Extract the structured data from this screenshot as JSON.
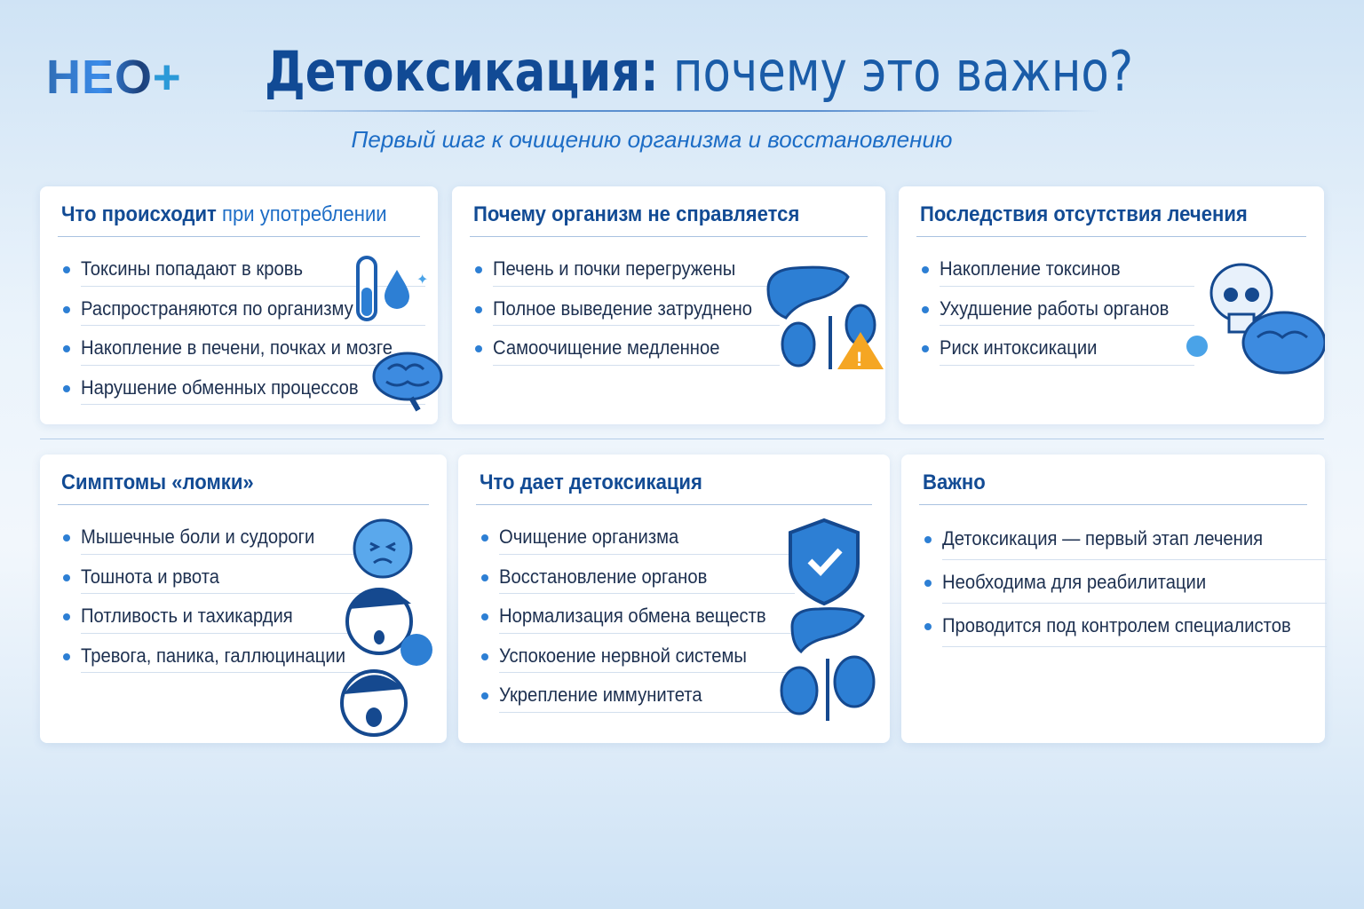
{
  "logo": {
    "text": "НЕО",
    "plus": "+"
  },
  "header": {
    "title_bold": "Детоксикация:",
    "title_rest": " почему это важно?",
    "subtitle": "Первый шаг к очищению организма и восстановлению"
  },
  "cards": [
    {
      "title_bold": "Что происходит",
      "title_rest": " при употреблении",
      "items": [
        "Токсины попадают в кровь",
        "Распространяются по организму",
        "Накопление в печени, почках и мозге",
        "Нарушение обменных процессов"
      ],
      "icons": [
        "test-tube-icon",
        "drop-icon",
        "brain-icon"
      ]
    },
    {
      "title_bold": "Почему организм не справляется",
      "title_rest": "",
      "items": [
        "Печень и почки перегружены",
        "Полное выведение затруднено",
        "Самоочищение медленное"
      ],
      "icons": [
        "liver-icon",
        "kidneys-icon",
        "warning-icon"
      ]
    },
    {
      "title_bold": "Последствия отсутствия лечения",
      "title_rest": "",
      "items": [
        "Накопление токсинов",
        "Ухудшение работы органов",
        "Риск интоксикации"
      ],
      "icons": [
        "skull-icon",
        "brain-icon"
      ]
    },
    {
      "title_bold": "Симптомы «ломки»",
      "title_rest": "",
      "items": [
        "Мышечные боли и судороги",
        "Тошнота и рвота",
        "Потливость и тахикардия",
        "Тревога, паника, галлюцинации"
      ],
      "icons": [
        "sick-face-icon",
        "sweating-face-icon",
        "scared-face-icon"
      ]
    },
    {
      "title_bold": "Что дает детоксикация",
      "title_rest": "",
      "items": [
        "Очищение организма",
        "Восстановление органов",
        "Нормализация обмена веществ",
        "Успокоение нервной системы",
        "Укрепление иммунитета"
      ],
      "icons": [
        "shield-check-icon",
        "liver-icon",
        "kidneys-icon"
      ]
    },
    {
      "title_bold": "Важно",
      "title_rest": "",
      "items": [
        "Детоксикация — первый этап лечения",
        "Необходима для реабилитации",
        "Проводится под контролем специалистов"
      ],
      "icons": []
    }
  ],
  "colors": {
    "primary": "#124b94",
    "accent": "#2d7fd4",
    "warning": "#f5a623"
  }
}
